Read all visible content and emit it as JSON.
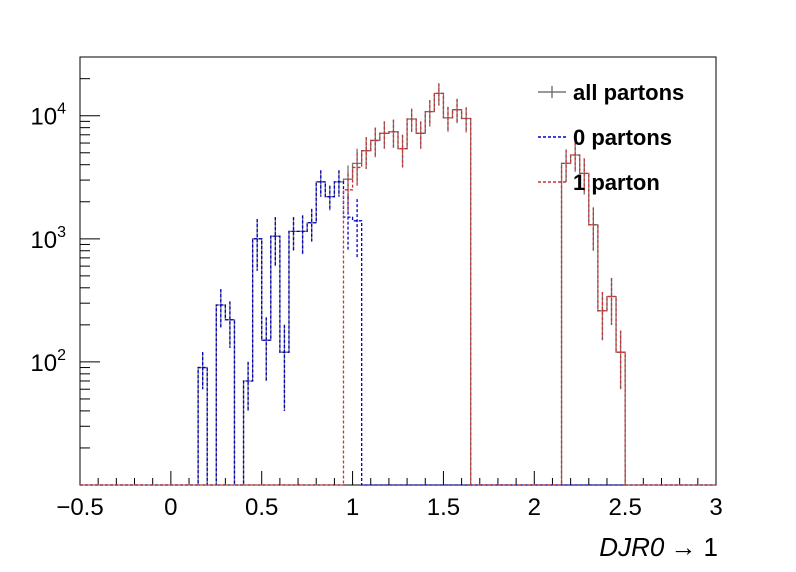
{
  "chart_data": {
    "type": "histogram",
    "title": "",
    "xlabel": "DJR0 → 1",
    "xlabel_parts": {
      "italic": "DJR0",
      "rest": "→ 1"
    },
    "ylabel": "",
    "xlim": [
      -0.5,
      3.0
    ],
    "ylim": [
      10,
      30000
    ],
    "y_scale": "log",
    "x_ticks": [
      -0.5,
      0,
      0.5,
      1,
      1.5,
      2,
      2.5,
      3
    ],
    "x_tick_labels": [
      "−0.5",
      "0",
      "0.5",
      "1",
      "1.5",
      "2",
      "2.5",
      "3"
    ],
    "y_ticks": [
      100,
      1000,
      10000
    ],
    "y_tick_labels": [
      {
        "base": "10",
        "exp": "2"
      },
      {
        "base": "10",
        "exp": "3"
      },
      {
        "base": "10",
        "exp": "4"
      }
    ],
    "grid": false,
    "legend_position": "top-right",
    "bin_width": 0.05,
    "bin_start": 0.1,
    "series": [
      {
        "name": "all partons",
        "color": "#777777",
        "style": "solid",
        "values": [
          null,
          90,
          null,
          290,
          220,
          null,
          70,
          1000,
          150,
          1050,
          120,
          1150,
          1150,
          1350,
          2900,
          2200,
          2900,
          3050,
          4100,
          5200,
          6300,
          7200,
          7400,
          5400,
          9400,
          7200,
          10800,
          15200,
          9600,
          11200,
          9500,
          null,
          null,
          null,
          null,
          null,
          null,
          null,
          null,
          null,
          null,
          4100,
          4800,
          3400,
          1300,
          260,
          340,
          120
        ],
        "errors": [
          null,
          30,
          null,
          100,
          90,
          null,
          30,
          450,
          80,
          450,
          80,
          350,
          400,
          400,
          700,
          500,
          700,
          900,
          1300,
          1500,
          1700,
          1800,
          1900,
          1600,
          2000,
          1800,
          2600,
          3100,
          2200,
          2500,
          2200,
          null,
          null,
          null,
          null,
          null,
          null,
          null,
          null,
          null,
          null,
          1200,
          1300,
          1100,
          500,
          110,
          140,
          60
        ]
      },
      {
        "name": "0 partons",
        "color": "#0000cc",
        "style": "dashed",
        "values": [
          null,
          90,
          null,
          290,
          220,
          null,
          70,
          1000,
          150,
          1050,
          120,
          1150,
          1150,
          1350,
          2900,
          2200,
          2900,
          1500,
          1400,
          null
        ],
        "errors": [
          null,
          30,
          null,
          100,
          90,
          null,
          30,
          450,
          80,
          450,
          80,
          350,
          400,
          400,
          700,
          500,
          700,
          700,
          700,
          null
        ]
      },
      {
        "name": "1 parton",
        "color": "#cc3333",
        "style": "dashed",
        "values": [
          null,
          null,
          null,
          null,
          null,
          null,
          null,
          null,
          null,
          null,
          null,
          null,
          null,
          null,
          null,
          null,
          null,
          2500,
          3800,
          5200,
          6300,
          7200,
          7400,
          5400,
          9400,
          7200,
          10800,
          15200,
          9600,
          11200,
          9500,
          null,
          null,
          null,
          null,
          null,
          null,
          null,
          null,
          null,
          null,
          4100,
          4800,
          3400,
          1300,
          260,
          340,
          120
        ],
        "errors": [
          null,
          null,
          null,
          null,
          null,
          null,
          null,
          null,
          null,
          null,
          null,
          null,
          null,
          null,
          null,
          null,
          null,
          900,
          1200,
          1500,
          1700,
          1800,
          1900,
          1600,
          2000,
          1800,
          2600,
          3100,
          2200,
          2500,
          2200,
          null,
          null,
          null,
          null,
          null,
          null,
          null,
          null,
          null,
          null,
          1200,
          1300,
          1100,
          500,
          110,
          140,
          60
        ]
      }
    ]
  }
}
